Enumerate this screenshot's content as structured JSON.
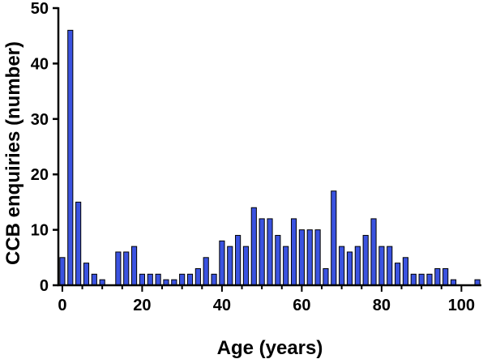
{
  "chart_data": {
    "type": "bar",
    "title": "",
    "xlabel": "Age (years)",
    "ylabel": "CCB enquiries (number)",
    "xlim": [
      -1,
      105
    ],
    "ylim": [
      0,
      50
    ],
    "xticks": [
      0,
      20,
      40,
      60,
      80,
      100
    ],
    "yticks": [
      0,
      10,
      20,
      30,
      40,
      50
    ],
    "bar_color": "#3b53e0",
    "bar_edge_color": "#000000",
    "grid": false,
    "legend": "none",
    "series": [
      {
        "x": [
          0,
          2,
          4,
          6,
          8,
          10,
          14,
          16,
          18,
          20,
          22,
          24,
          26,
          28,
          30,
          32,
          34,
          36,
          38,
          40,
          42,
          44,
          46,
          48,
          50,
          52,
          54,
          56,
          58,
          60,
          62,
          64,
          66,
          68,
          70,
          72,
          74,
          76,
          78,
          80,
          82,
          84,
          86,
          88,
          90,
          92,
          94,
          96,
          98,
          104
        ],
        "values": [
          5,
          46,
          15,
          4,
          2,
          1,
          6,
          6,
          7,
          2,
          2,
          2,
          1,
          1,
          2,
          2,
          3,
          5,
          2,
          8,
          7,
          9,
          7,
          14,
          12,
          12,
          9,
          7,
          12,
          10,
          10,
          10,
          3,
          17,
          7,
          6,
          7,
          9,
          12,
          7,
          7,
          4,
          5,
          2,
          2,
          2,
          3,
          3,
          1,
          1
        ]
      }
    ]
  }
}
